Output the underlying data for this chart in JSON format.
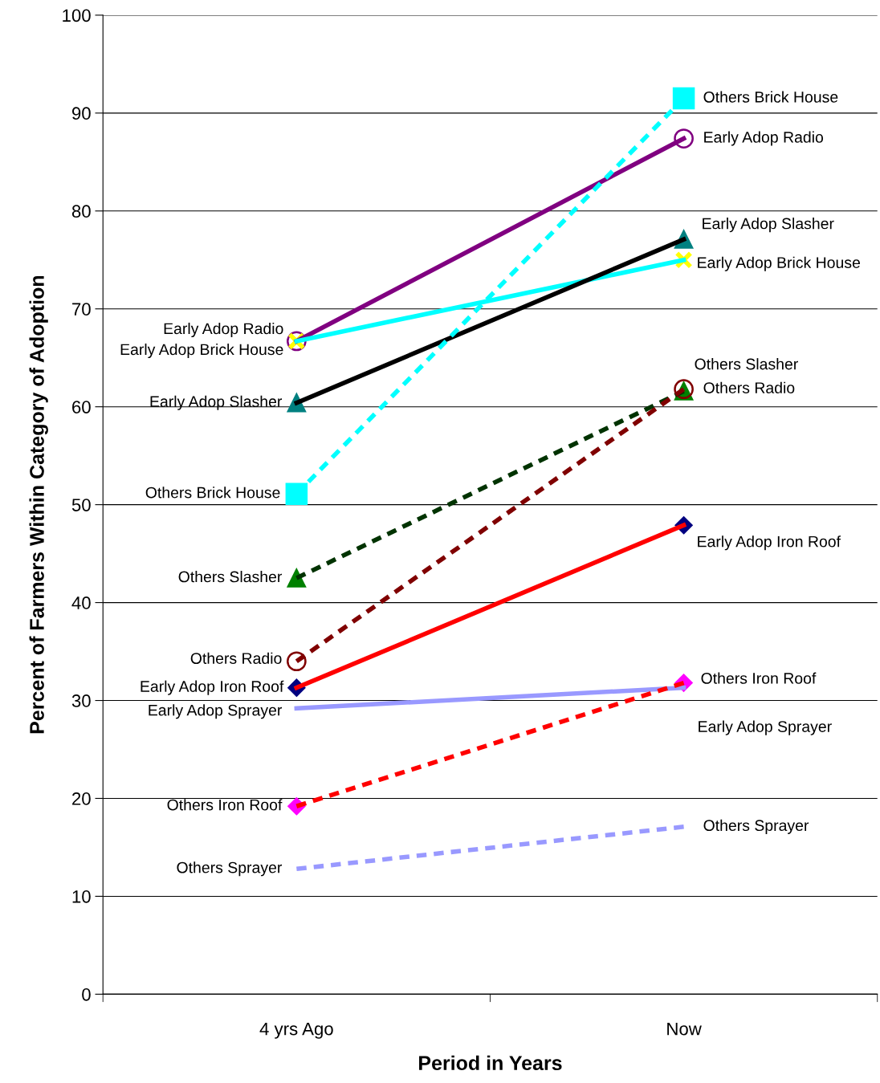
{
  "chart_data": {
    "type": "line",
    "xlabel": "Period in Years",
    "ylabel": "Percent of Farmers Within Category of Adoption",
    "categories": [
      "4 yrs Ago",
      "Now"
    ],
    "ylim": [
      0,
      100
    ],
    "yticks": [
      0,
      10,
      20,
      30,
      40,
      50,
      60,
      70,
      80,
      90,
      100
    ],
    "grid": "y",
    "series": [
      {
        "name": "Early Adop Radio",
        "color": "#800080",
        "values": [
          66.7,
          87.4
        ],
        "line_style": "solid",
        "marker": "circle",
        "colors": [
          "#800080",
          "#800080"
        ]
      },
      {
        "name": "Early Adop Brick House",
        "color": "#00ffff",
        "values": [
          66.7,
          75.0
        ],
        "line_style": "solid",
        "marker": "cross",
        "colors": [
          "#ffff00",
          "#ffff00"
        ]
      },
      {
        "name": "Early Adop Slasher",
        "color": "#000000",
        "values": [
          60.4,
          77.1
        ],
        "line_style": "solid",
        "marker": "triangle",
        "colors": [
          "#008080",
          "#008080"
        ]
      },
      {
        "name": "Others Brick House",
        "color": "#00ffff",
        "values": [
          51.1,
          91.5
        ],
        "line_style": "dashed",
        "marker": "square",
        "colors": [
          "#00ffff",
          "#00ffff"
        ]
      },
      {
        "name": "Others Slasher",
        "color": "#003300",
        "values": [
          42.5,
          61.6
        ],
        "line_style": "dashed",
        "marker": "triangle",
        "colors": [
          "#008000",
          "#008000"
        ]
      },
      {
        "name": "Others Radio",
        "color": "#800000",
        "values": [
          34.0,
          61.8
        ],
        "line_style": "dashed",
        "marker": "circle",
        "colors": [
          "#800000",
          "#800000"
        ]
      },
      {
        "name": "Early Adop Iron Roof",
        "color": "#ff0000",
        "values": [
          31.3,
          47.9
        ],
        "line_style": "solid",
        "marker": "diamond",
        "colors": [
          "#000080",
          "#000080"
        ]
      },
      {
        "name": "Early Adop Sprayer",
        "color": "#9999ff",
        "values": [
          29.2,
          31.3
        ],
        "line_style": "solid",
        "marker": "none"
      },
      {
        "name": "Others Iron Roof",
        "color": "#ff0000",
        "values": [
          19.2,
          31.8
        ],
        "line_style": "dashed",
        "marker": "diamond",
        "colors": [
          "#ff00ff",
          "#ff00ff"
        ]
      },
      {
        "name": "Others Sprayer",
        "color": "#9999ff",
        "values": [
          12.8,
          17.1
        ],
        "line_style": "dashed",
        "marker": "none"
      }
    ]
  }
}
